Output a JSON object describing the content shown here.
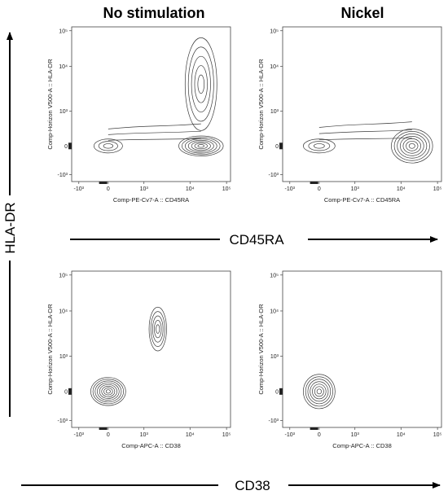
{
  "figure": {
    "column_titles": [
      "No stimulation",
      "Nickel"
    ],
    "row_labels": [
      "CD45RA",
      "CD38"
    ],
    "side_label": "HLA-DR"
  },
  "chart_data": [
    {
      "type": "contour",
      "panel": "top-left",
      "column": "No stimulation",
      "xlabel": "Comp-PE-Cv7-A :: CD45RA",
      "ylabel": "Comp-Horizon V500-A :: HLA-DR",
      "x_ticks": [
        "-10³",
        "0",
        "10³",
        "10⁴",
        "10⁵"
      ],
      "y_ticks": [
        "-10³",
        "0",
        "10³",
        "10⁴",
        "10⁵"
      ],
      "populations": [
        {
          "x": 0,
          "y": 0,
          "levels": 3
        },
        {
          "x": 20000,
          "y": 0,
          "levels": 7
        },
        {
          "x": 20000,
          "y": 4000,
          "levels": 5
        }
      ]
    },
    {
      "type": "contour",
      "panel": "top-right",
      "column": "Nickel",
      "xlabel": "Comp-PE-Cv7-A :: CD45RA",
      "ylabel": "Comp-Horizon V500-A :: HLA-DR",
      "x_ticks": [
        "-10³",
        "0",
        "10³",
        "10⁴",
        "10⁵"
      ],
      "y_ticks": [
        "-10³",
        "0",
        "10³",
        "10⁴",
        "10⁵"
      ],
      "populations": [
        {
          "x": 0,
          "y": 0,
          "levels": 3
        },
        {
          "x": 20000,
          "y": 0,
          "levels": 7
        }
      ]
    },
    {
      "type": "contour",
      "panel": "bottom-left",
      "column": "No stimulation",
      "xlabel": "Comp-APC-A :: CD38",
      "ylabel": "Comp-Horizon V500-A :: HLA-DR",
      "x_ticks": [
        "-10³",
        "0",
        "10³",
        "10⁴",
        "10⁵"
      ],
      "y_ticks": [
        "-10³",
        "0",
        "10³",
        "10⁴",
        "10⁵"
      ],
      "populations": [
        {
          "x": 0,
          "y": 0,
          "levels": 8
        },
        {
          "x": 2000,
          "y": 4000,
          "levels": 5
        }
      ]
    },
    {
      "type": "contour",
      "panel": "bottom-right",
      "column": "Nickel",
      "xlabel": "Comp-APC-A :: CD38",
      "ylabel": "Comp-Horizon V500-A :: HLA-DR",
      "x_ticks": [
        "-10³",
        "0",
        "10³",
        "10⁴",
        "10⁵"
      ],
      "y_ticks": [
        "-10³",
        "0",
        "10³",
        "10⁴",
        "10⁵"
      ],
      "populations": [
        {
          "x": 0,
          "y": 0,
          "levels": 7
        }
      ]
    }
  ]
}
